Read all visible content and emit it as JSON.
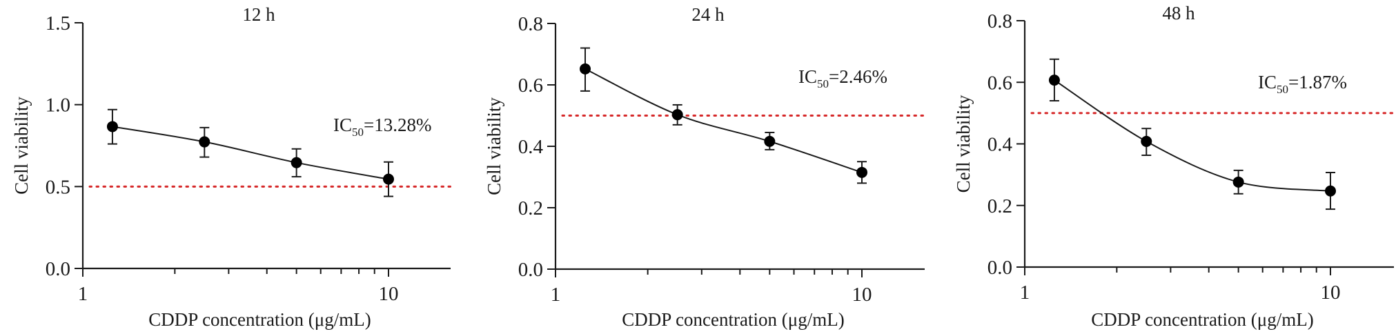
{
  "chart_data": [
    {
      "type": "line",
      "title": "12 h",
      "xlabel": "CDDP concentration (μg/mL)",
      "ylabel": "Cell viability",
      "xscale": "log",
      "xlim": [
        1,
        16
      ],
      "ylim": [
        0,
        1.5
      ],
      "yticks": [
        "0.0",
        "0.5",
        "1.0",
        "1.5"
      ],
      "ytick_values": [
        0,
        0.5,
        1.0,
        1.5
      ],
      "xticks": [
        "1",
        "10"
      ],
      "xtick_values": [
        1,
        10
      ],
      "x": [
        1.25,
        2.5,
        5,
        10
      ],
      "y": [
        0.866,
        0.773,
        0.646,
        0.545
      ],
      "err_low": [
        0.76,
        0.68,
        0.56,
        0.44
      ],
      "err_high": [
        0.97,
        0.86,
        0.73,
        0.65
      ],
      "threshold": 0.5,
      "annotation": {
        "prefix": "IC",
        "sub": "50",
        "suffix": "=13.28%"
      }
    },
    {
      "type": "line",
      "title": "24 h",
      "xlabel": "CDDP concentration (μg/mL)",
      "ylabel": "Cell viability",
      "xscale": "log",
      "xlim": [
        1,
        16
      ],
      "ylim": [
        0,
        0.8
      ],
      "yticks": [
        "0.0",
        "0.2",
        "0.4",
        "0.6",
        "0.8"
      ],
      "ytick_values": [
        0,
        0.2,
        0.4,
        0.6,
        0.8
      ],
      "xticks": [
        "1",
        "10"
      ],
      "xtick_values": [
        1,
        10
      ],
      "x": [
        1.25,
        2.5,
        5,
        10
      ],
      "y": [
        0.652,
        0.503,
        0.416,
        0.315
      ],
      "err_low": [
        0.58,
        0.47,
        0.389,
        0.28
      ],
      "err_high": [
        0.72,
        0.535,
        0.445,
        0.35
      ],
      "threshold": 0.5,
      "annotation": {
        "prefix": "IC",
        "sub": "50",
        "suffix": "=2.46%"
      }
    },
    {
      "type": "line",
      "title": "48 h",
      "xlabel": "CDDP concentration (μg/mL)",
      "ylabel": "Cell viability",
      "xscale": "log",
      "xlim": [
        1,
        16
      ],
      "ylim": [
        0,
        0.8
      ],
      "yticks": [
        "0.0",
        "0.2",
        "0.4",
        "0.6",
        "0.8"
      ],
      "ytick_values": [
        0,
        0.2,
        0.4,
        0.6,
        0.8
      ],
      "xticks": [
        "1",
        "10"
      ],
      "xtick_values": [
        1,
        10
      ],
      "x": [
        1.25,
        2.5,
        5,
        10
      ],
      "y": [
        0.607,
        0.408,
        0.276,
        0.247
      ],
      "err_low": [
        0.54,
        0.363,
        0.238,
        0.188
      ],
      "err_high": [
        0.675,
        0.45,
        0.314,
        0.307
      ],
      "threshold": 0.5,
      "annotation": {
        "prefix": "IC",
        "sub": "50",
        "suffix": "=1.87%"
      }
    }
  ],
  "colors": {
    "threshold": "#d62728",
    "ink": "#1a1a1a"
  }
}
